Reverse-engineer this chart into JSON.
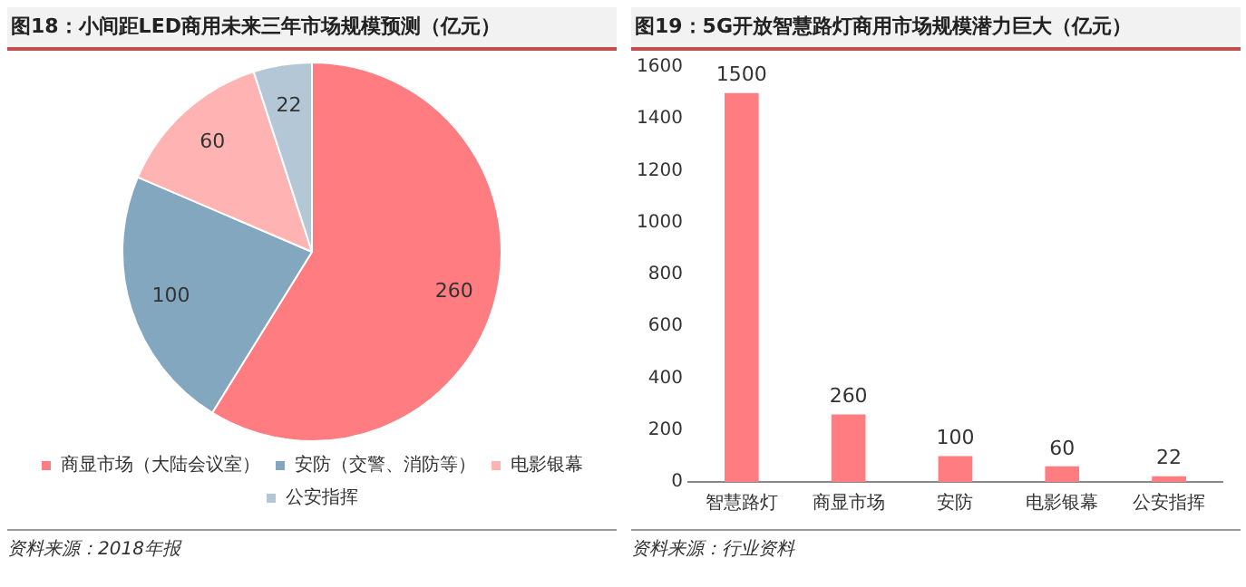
{
  "chart_data": [
    {
      "type": "pie",
      "title": "图18：小间距LED商用未来三年市场规模预测（亿元）",
      "categories": [
        "商显市场（大陆会议室）",
        "安防（交警、消防等）",
        "电影银幕",
        "公安指挥"
      ],
      "values": [
        260,
        100,
        60,
        22
      ],
      "colors": [
        "#ff7c80",
        "#84a7c0",
        "#ffb3b3",
        "#b4c7d6"
      ],
      "data_labels": true,
      "legend": "bottom",
      "annotations": [
        "资料来源：2018年报"
      ]
    },
    {
      "type": "bar",
      "title": "图19：5G开放智慧路灯商用市场规模潜力巨大（亿元）",
      "categories": [
        "智慧路灯",
        "商显市场",
        "安防",
        "电影银幕",
        "公安指挥"
      ],
      "values": [
        1500,
        260,
        100,
        60,
        22
      ],
      "color": "#ff7c80",
      "ylim": [
        0,
        1600
      ],
      "yticks": [
        0,
        200,
        400,
        600,
        800,
        1000,
        1200,
        1400,
        1600
      ],
      "grid": false,
      "data_labels": true,
      "annotations": [
        "资料来源：行业资料"
      ]
    }
  ]
}
